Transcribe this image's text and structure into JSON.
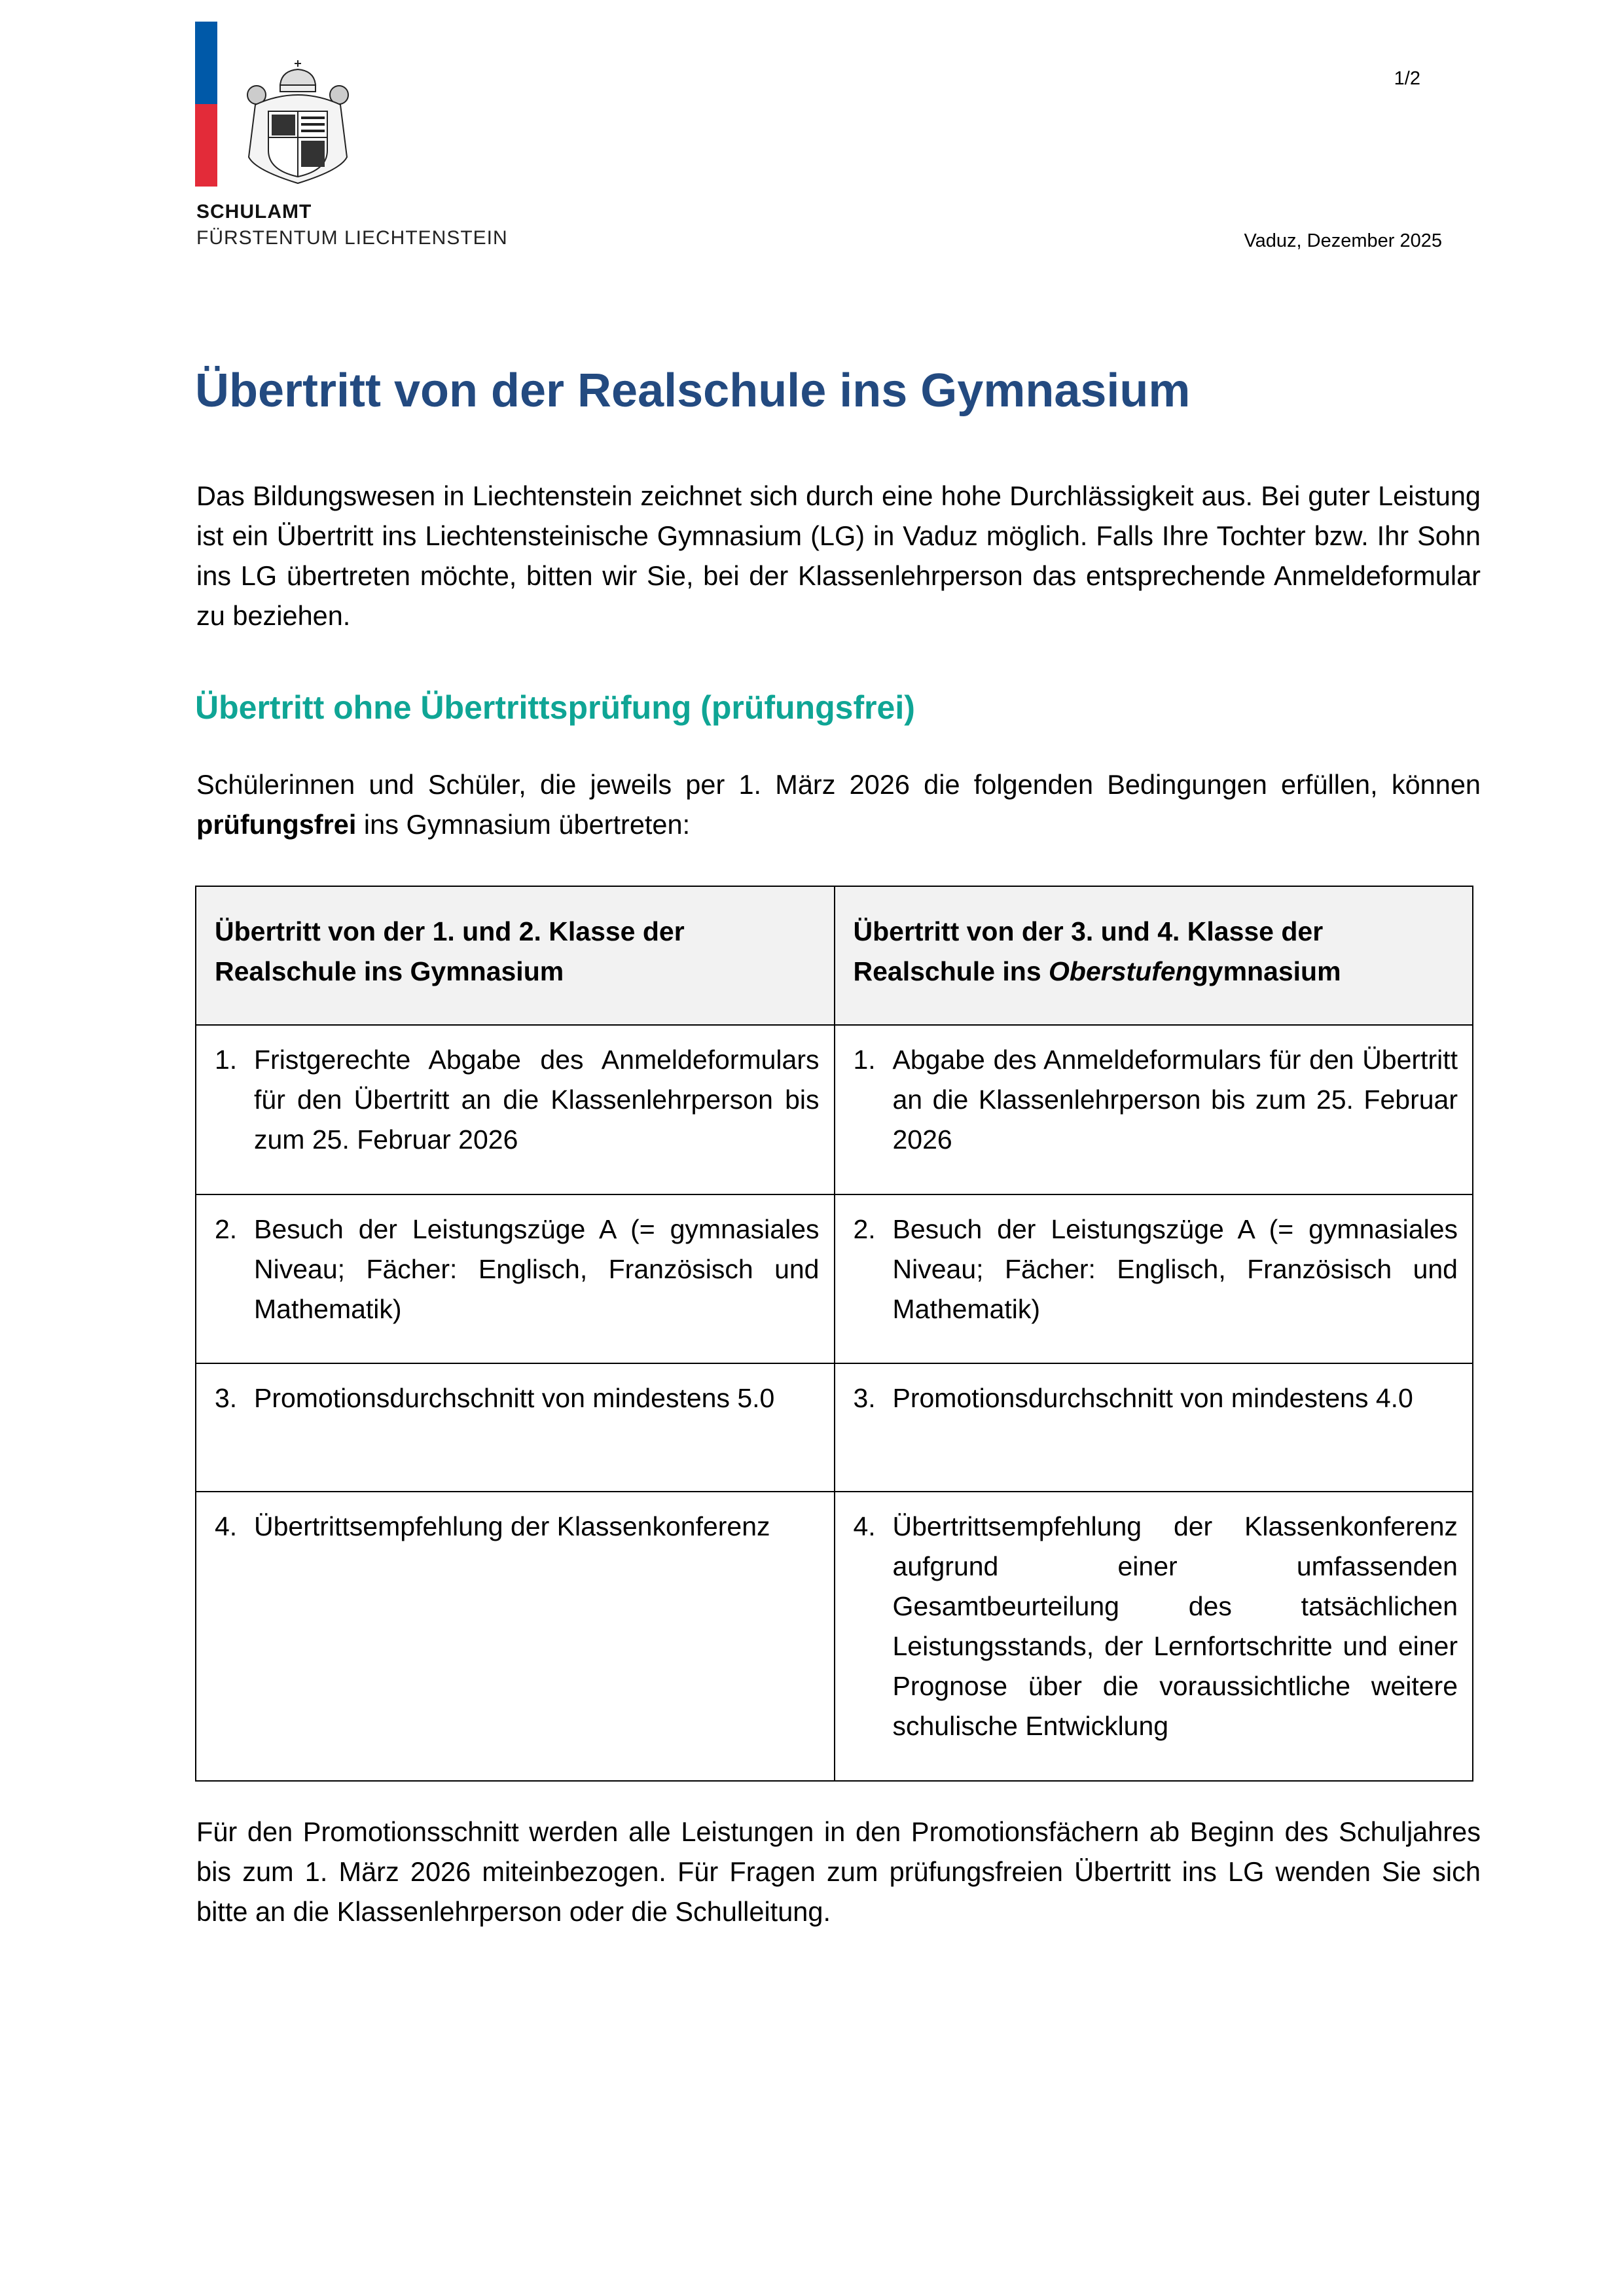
{
  "header": {
    "flag_colors": {
      "top": "#0059a8",
      "bottom": "#e32b39"
    },
    "crest_icon": "liechtenstein-coat-of-arms",
    "org_line1": "SCHULAMT",
    "org_line2": "FÜRSTENTUM LIECHTENSTEIN",
    "page_number": "1/2",
    "place_date": "Vaduz, Dezember 2025"
  },
  "title": "Übertritt von der Realschule ins Gymnasium",
  "intro": "Das Bildungswesen in Liechtenstein zeichnet sich durch eine hohe Durchlässigkeit aus. Bei guter Leistung ist ein Übertritt ins Liechtensteinische Gymnasium (LG) in Vaduz möglich. Falls Ihre Tochter bzw. Ihr Sohn ins LG übertreten möchte, bitten wir Sie, bei der Klassenlehrperson das entsprechende Anmeldeformular zu beziehen.",
  "section_heading": "Übertritt ohne Übertrittsprüfung (prüfungsfrei)",
  "conditions_intro": {
    "before": "Schülerinnen und Schüler, die jeweils per 1. März 2026 die folgenden Bedingungen erfüllen, können ",
    "bold": "prüfungsfrei",
    "after": " ins Gymnasium übertreten:"
  },
  "table": {
    "col1_header": "Übertritt von der 1. und 2. Klasse der Realschule ins Gymnasium",
    "col2_header": {
      "before": "Übertritt von der 3. und 4. Klasse der Realschule ins ",
      "italic": "Oberstufen",
      "after": "gymnasium"
    },
    "rows": [
      {
        "num": "1.",
        "left": "Fristgerechte Abgabe des Anmeldeformulars für den Übertritt an die Klassenlehrperson bis zum 25. Februar 2026",
        "right": "Abgabe des Anmeldeformulars für den Übertritt an die Klassenlehrperson bis zum 25. Februar 2026"
      },
      {
        "num": "2.",
        "left": "Besuch der Leistungszüge A (= gymnasiales Niveau; Fächer: Englisch, Französisch und Mathematik)",
        "right": "Besuch der Leistungszüge A (= gymnasiales Niveau; Fächer: Englisch, Französisch und Mathematik)"
      },
      {
        "num": "3.",
        "left": "Promotionsdurchschnitt von mindestens 5.0",
        "right": "Promotionsdurchschnitt von mindestens 4.0"
      },
      {
        "num": "4.",
        "left": "Übertrittsempfehlung der Klassenkonferenz",
        "right": "Übertrittsempfehlung der Klassenkonferenz aufgrund einer umfassenden Gesamtbeurteilung des tatsächlichen Leistungsstands, der Lernfortschritte und einer Prognose über die voraussichtliche weitere schulische Entwicklung"
      }
    ]
  },
  "closing": "Für den Promotionsschnitt werden alle Leistungen in den Promotionsfächern ab Beginn des Schuljahres bis zum 1. März 2026 miteinbezogen. Für Fragen zum prüfungsfreien Übertritt ins LG wenden Sie sich bitte an die Klassenlehrperson oder die Schulleitung."
}
